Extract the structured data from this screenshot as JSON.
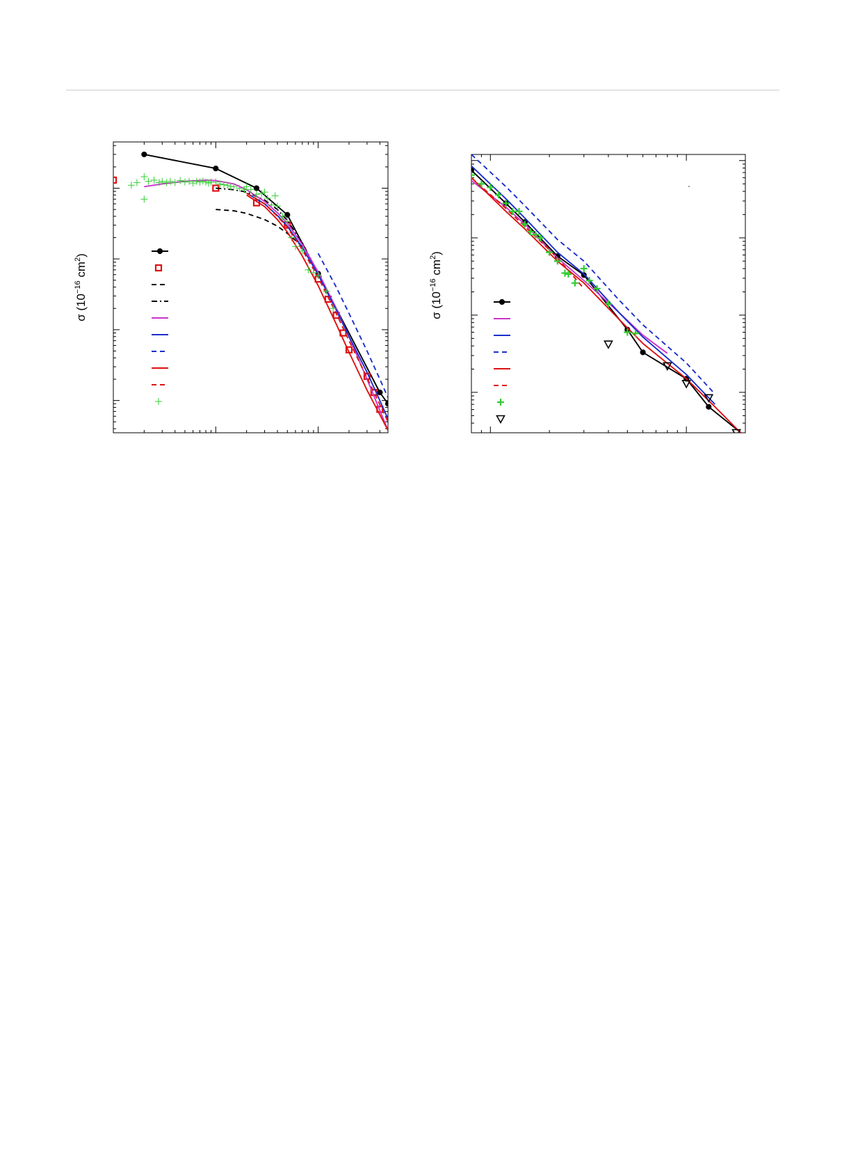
{
  "page": {
    "rule_color": "#cfcfcf"
  },
  "chart_data": [
    {
      "type": "line",
      "title": "",
      "xlabel": "",
      "ylabel_prefix": "σ  (10",
      "ylabel_exponent": "−16",
      "ylabel_unit_open": " cm",
      "ylabel_unit_exponent": "2",
      "ylabel_close": ")",
      "x_scale": "log",
      "y_scale": "log",
      "xlim": [
        0.1,
        48
      ],
      "ylim": [
        0.0035,
        45
      ],
      "x_major_ticks": [
        0.1,
        1,
        10
      ],
      "y_major_ticks": [
        0.01,
        0.1,
        1,
        10
      ],
      "tick_labels_visible": false,
      "grid": false,
      "legend_placement": "left-center",
      "legend_labels_visible": false,
      "series": [
        {
          "marker": "filled-circle",
          "line": "solid",
          "color": "#000000",
          "x": [
            0.2,
            1,
            2.5,
            5,
            10,
            40,
            48
          ],
          "y": [
            30,
            19,
            10,
            4.2,
            0.62,
            0.013,
            0.009
          ]
        },
        {
          "marker": "open-square",
          "line": "none",
          "color": "#dd1111",
          "x": [
            0.1,
            1,
            2.5,
            5,
            10,
            12.5,
            15,
            17.5,
            20,
            30,
            35,
            40
          ],
          "y": [
            13,
            10,
            6.2,
            3.0,
            0.52,
            0.27,
            0.16,
            0.09,
            0.052,
            0.022,
            0.013,
            0.0075
          ]
        },
        {
          "marker": "none",
          "line": "dashed",
          "color": "#000000",
          "x": [
            1,
            1.5,
            2,
            3,
            4,
            5,
            7
          ],
          "y": [
            5.0,
            4.8,
            4.4,
            3.6,
            2.9,
            2.3,
            1.5
          ]
        },
        {
          "marker": "none",
          "line": "dashdot",
          "color": "#000000",
          "x": [
            1,
            1.5,
            2,
            3,
            4,
            5,
            7,
            10
          ],
          "y": [
            10,
            9.5,
            8.8,
            6.8,
            5.0,
            3.5,
            1.7,
            0.62
          ]
        },
        {
          "marker": "none",
          "line": "solid",
          "color": "#cc33cc",
          "x": [
            0.2,
            0.3,
            0.5,
            0.8,
            1,
            1.5,
            2,
            3,
            4,
            5,
            7,
            10,
            15,
            20,
            30,
            48
          ],
          "y": [
            10.5,
            11.5,
            12.5,
            13,
            12.8,
            11.5,
            9.5,
            6.5,
            4.5,
            3.2,
            1.6,
            0.65,
            0.2,
            0.08,
            0.02,
            0.0038
          ]
        },
        {
          "marker": "none",
          "line": "solid",
          "color": "#1a2ecc",
          "x": [
            2,
            3,
            4,
            5,
            7,
            10,
            15,
            20,
            30,
            40,
            48
          ],
          "y": [
            8.5,
            6.0,
            4.1,
            2.9,
            1.45,
            0.6,
            0.19,
            0.08,
            0.025,
            0.01,
            0.0055
          ]
        },
        {
          "marker": "none",
          "line": "dashed",
          "color": "#1a2ecc",
          "x": [
            10,
            15,
            20,
            30,
            40,
            48
          ],
          "y": [
            1.2,
            0.4,
            0.17,
            0.05,
            0.02,
            0.011
          ]
        },
        {
          "marker": "none",
          "line": "solid",
          "color": "#dd1111",
          "x": [
            2,
            3,
            4,
            5,
            7,
            10,
            15,
            20,
            30,
            48
          ],
          "y": [
            8.0,
            5.5,
            3.6,
            2.4,
            1.1,
            0.42,
            0.12,
            0.048,
            0.014,
            0.0038
          ]
        },
        {
          "marker": "none",
          "line": "dashed",
          "color": "#dd1111",
          "x": [
            2,
            3,
            4,
            5,
            7,
            10,
            15,
            20,
            30,
            48
          ],
          "y": [
            8.5,
            6.0,
            4.0,
            2.8,
            1.35,
            0.55,
            0.17,
            0.07,
            0.021,
            0.005
          ]
        },
        {
          "marker": "plus",
          "line": "none",
          "color": "#33cc33",
          "x": [
            0.15,
            0.17,
            0.2,
            0.2,
            0.22,
            0.25,
            0.28,
            0.3,
            0.33,
            0.36,
            0.4,
            0.45,
            0.5,
            0.55,
            0.6,
            0.65,
            0.7,
            0.75,
            0.8,
            0.85,
            0.9,
            1.0,
            1.1,
            1.2,
            1.3,
            1.4,
            1.5,
            1.7,
            1.9,
            2.0,
            2.2,
            2.5,
            2.8,
            3.0,
            3.2,
            3.5,
            3.8,
            4.0,
            4.5,
            5.0,
            5.5,
            6.0,
            7.0,
            8.0,
            9.0,
            10,
            12,
            14
          ],
          "y": [
            11,
            12,
            14.5,
            7,
            12.5,
            13,
            12,
            12.5,
            12,
            12.5,
            12,
            12.8,
            12.2,
            12.5,
            11.8,
            12.5,
            12.2,
            12.6,
            12.2,
            11.8,
            12.2,
            12.2,
            11.5,
            11.2,
            11,
            10.5,
            10.5,
            10,
            9.5,
            10.5,
            9.6,
            8.2,
            8.4,
            8.8,
            7.2,
            5.8,
            7.8,
            5.6,
            4.0,
            3.4,
            2.0,
            1.5,
            1.3,
            0.7,
            0.64,
            0.58,
            0.35,
            0.2
          ]
        }
      ]
    },
    {
      "type": "line",
      "title": "",
      "xlabel": "",
      "ylabel_prefix": "σ  (10",
      "ylabel_exponent": "−16",
      "ylabel_unit_open": " cm",
      "ylabel_unit_exponent": "2",
      "ylabel_close": ")",
      "x_scale": "log",
      "y_scale": "log",
      "xlim": [
        8,
        200
      ],
      "ylim": [
        0.0003,
        1.2
      ],
      "x_major_ticks": [
        10,
        100
      ],
      "y_major_ticks": [
        0.001,
        0.01,
        0.1,
        1
      ],
      "tick_labels_visible": false,
      "grid": false,
      "legend_placement": "left-lower",
      "legend_labels_visible": false,
      "series": [
        {
          "marker": "filled-circle",
          "line": "solid",
          "color": "#000000",
          "x": [
            8,
            12,
            15,
            22,
            30,
            50,
            60,
            100,
            130,
            200
          ],
          "y": [
            0.75,
            0.28,
            0.16,
            0.058,
            0.033,
            0.0065,
            0.0033,
            0.0015,
            0.00065,
            0.00027
          ]
        },
        {
          "marker": "none",
          "line": "solid",
          "color": "#cc33cc",
          "x": [
            8,
            12,
            15,
            22,
            30,
            45,
            60,
            80
          ],
          "y": [
            0.55,
            0.25,
            0.15,
            0.055,
            0.028,
            0.011,
            0.0055,
            0.0032
          ]
        },
        {
          "marker": "none",
          "line": "solid",
          "color": "#1a2ecc",
          "x": [
            8,
            12,
            15,
            22,
            30,
            45,
            60,
            100,
            140
          ],
          "y": [
            0.85,
            0.32,
            0.18,
            0.065,
            0.034,
            0.011,
            0.0052,
            0.0017,
            0.0007
          ]
        },
        {
          "marker": "none",
          "line": "dashed",
          "color": "#1a2ecc",
          "x": [
            8,
            12,
            15,
            22,
            30,
            45,
            60,
            100,
            140
          ],
          "y": [
            1.2,
            0.46,
            0.26,
            0.095,
            0.05,
            0.016,
            0.0075,
            0.0024,
            0.00095
          ]
        },
        {
          "marker": "none",
          "line": "solid",
          "color": "#dd1111",
          "x": [
            8,
            12,
            15,
            22,
            30,
            45,
            60,
            100,
            140,
            200
          ],
          "y": [
            0.6,
            0.22,
            0.13,
            0.05,
            0.026,
            0.009,
            0.0043,
            0.0015,
            0.00065,
            0.00026
          ]
        },
        {
          "marker": "none",
          "line": "dashed",
          "color": "#dd1111",
          "x": [
            8,
            12,
            15,
            20,
            25,
            30
          ],
          "y": [
            0.6,
            0.24,
            0.14,
            0.07,
            0.038,
            0.022
          ]
        },
        {
          "marker": "bold-plus",
          "line": "none",
          "color": "#33cc33",
          "x": [
            8,
            9,
            10,
            11,
            12,
            13,
            14,
            15,
            16,
            17,
            18,
            20,
            22,
            24,
            25,
            27,
            30,
            32,
            35,
            40,
            50,
            55
          ],
          "y": [
            0.65,
            0.5,
            0.45,
            0.36,
            0.28,
            0.22,
            0.22,
            0.15,
            0.12,
            0.11,
            0.1,
            0.065,
            0.05,
            0.035,
            0.034,
            0.026,
            0.04,
            0.028,
            0.022,
            0.014,
            0.006,
            0.0058
          ]
        },
        {
          "marker": "open-triangle-down",
          "line": "none",
          "color": "#000000",
          "x": [
            40,
            80,
            100,
            130,
            180
          ],
          "y": [
            0.0042,
            0.0022,
            0.0013,
            0.00085,
            0.0003
          ]
        }
      ]
    }
  ]
}
